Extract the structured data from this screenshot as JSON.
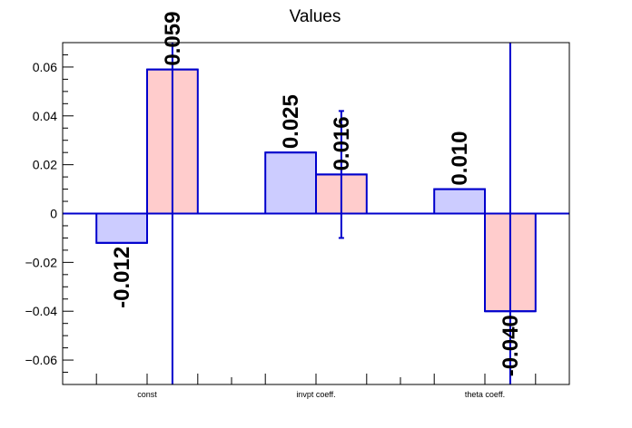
{
  "chart_data": {
    "type": "bar",
    "title": "Values",
    "xlabel": "",
    "ylabel": "",
    "ylim": [
      -0.07,
      0.07
    ],
    "yticks": [
      -0.06,
      -0.04,
      -0.02,
      0,
      0.02,
      0.04,
      0.06
    ],
    "ytick_labels": [
      "−0.06",
      "−0.04",
      "−0.02",
      "0",
      "0.02",
      "0.04",
      "0.06"
    ],
    "categories": [
      "const",
      "invpt coeff.",
      "theta coeff."
    ],
    "series": [
      {
        "color_fill": "#ccccff",
        "color_edge": "#0000cc",
        "values": [
          -0.012,
          0.025,
          0.01
        ],
        "labels": [
          "-0.012",
          "0.025",
          "0.010"
        ],
        "errors": [
          null,
          null,
          null
        ]
      },
      {
        "color_fill": "#ffcccc",
        "color_edge": "#0000cc",
        "values": [
          0.059,
          0.016,
          -0.04
        ],
        "labels": [
          "0.059",
          "0.016",
          "-0.040"
        ],
        "errors": [
          0.15,
          0.026,
          0.15
        ]
      }
    ],
    "zero_line_color": "#0000cc",
    "grid": false,
    "legend": "none"
  }
}
